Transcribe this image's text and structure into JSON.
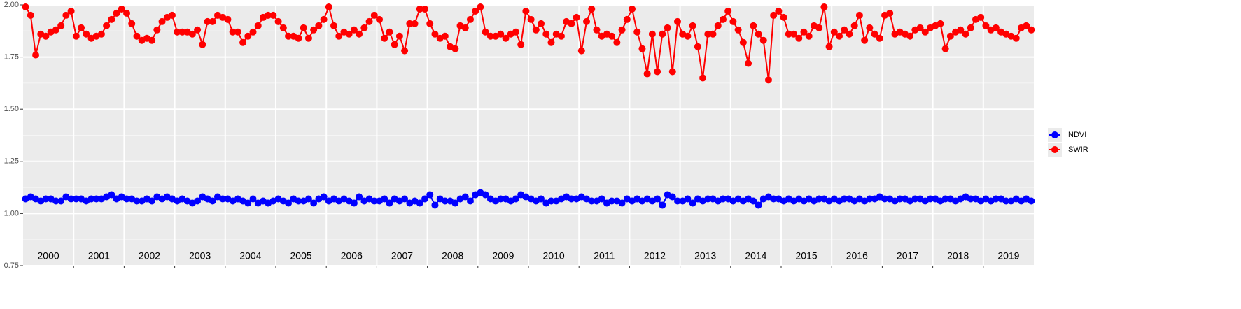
{
  "chart_data": {
    "type": "line",
    "x": [
      2000.05,
      2000.15,
      2000.25,
      2000.35,
      2000.45,
      2000.55,
      2000.65,
      2000.75,
      2000.85,
      2000.95,
      2001.05,
      2001.15,
      2001.25,
      2001.35,
      2001.45,
      2001.55,
      2001.65,
      2001.75,
      2001.85,
      2001.95,
      2002.05,
      2002.15,
      2002.25,
      2002.35,
      2002.45,
      2002.55,
      2002.65,
      2002.75,
      2002.85,
      2002.95,
      2003.05,
      2003.15,
      2003.25,
      2003.35,
      2003.45,
      2003.55,
      2003.65,
      2003.75,
      2003.85,
      2003.95,
      2004.05,
      2004.15,
      2004.25,
      2004.35,
      2004.45,
      2004.55,
      2004.65,
      2004.75,
      2004.85,
      2004.95,
      2005.05,
      2005.15,
      2005.25,
      2005.35,
      2005.45,
      2005.55,
      2005.65,
      2005.75,
      2005.85,
      2005.95,
      2006.05,
      2006.15,
      2006.25,
      2006.35,
      2006.45,
      2006.55,
      2006.65,
      2006.75,
      2006.85,
      2006.95,
      2007.05,
      2007.15,
      2007.25,
      2007.35,
      2007.45,
      2007.55,
      2007.65,
      2007.75,
      2007.85,
      2007.95,
      2008.05,
      2008.15,
      2008.25,
      2008.35,
      2008.45,
      2008.55,
      2008.65,
      2008.75,
      2008.85,
      2008.95,
      2009.05,
      2009.15,
      2009.25,
      2009.35,
      2009.45,
      2009.55,
      2009.65,
      2009.75,
      2009.85,
      2009.95,
      2010.05,
      2010.15,
      2010.25,
      2010.35,
      2010.45,
      2010.55,
      2010.65,
      2010.75,
      2010.85,
      2010.95,
      2011.05,
      2011.15,
      2011.25,
      2011.35,
      2011.45,
      2011.55,
      2011.65,
      2011.75,
      2011.85,
      2011.95,
      2012.05,
      2012.15,
      2012.25,
      2012.35,
      2012.45,
      2012.55,
      2012.65,
      2012.75,
      2012.85,
      2012.95,
      2013.05,
      2013.15,
      2013.25,
      2013.35,
      2013.45,
      2013.55,
      2013.65,
      2013.75,
      2013.85,
      2013.95,
      2014.05,
      2014.15,
      2014.25,
      2014.35,
      2014.45,
      2014.55,
      2014.65,
      2014.75,
      2014.85,
      2014.95,
      2015.05,
      2015.15,
      2015.25,
      2015.35,
      2015.45,
      2015.55,
      2015.65,
      2015.75,
      2015.85,
      2015.95,
      2016.05,
      2016.15,
      2016.25,
      2016.35,
      2016.45,
      2016.55,
      2016.65,
      2016.75,
      2016.85,
      2016.95,
      2017.05,
      2017.15,
      2017.25,
      2017.35,
      2017.45,
      2017.55,
      2017.65,
      2017.75,
      2017.85,
      2017.95,
      2018.05,
      2018.15,
      2018.25,
      2018.35,
      2018.45,
      2018.55,
      2018.65,
      2018.75,
      2018.85,
      2018.95,
      2019.05,
      2019.15,
      2019.25,
      2019.35,
      2019.45,
      2019.55,
      2019.65,
      2019.75,
      2019.85,
      2019.95
    ],
    "series": [
      {
        "name": "NDVI",
        "color": "#0000ff",
        "values": [
          1.07,
          1.08,
          1.07,
          1.06,
          1.07,
          1.07,
          1.06,
          1.06,
          1.08,
          1.07,
          1.07,
          1.07,
          1.06,
          1.07,
          1.07,
          1.07,
          1.08,
          1.09,
          1.07,
          1.08,
          1.07,
          1.07,
          1.06,
          1.06,
          1.07,
          1.06,
          1.08,
          1.07,
          1.08,
          1.07,
          1.06,
          1.07,
          1.06,
          1.05,
          1.06,
          1.08,
          1.07,
          1.06,
          1.08,
          1.07,
          1.07,
          1.06,
          1.07,
          1.06,
          1.05,
          1.07,
          1.05,
          1.06,
          1.05,
          1.06,
          1.07,
          1.06,
          1.05,
          1.07,
          1.06,
          1.06,
          1.07,
          1.05,
          1.07,
          1.08,
          1.06,
          1.07,
          1.06,
          1.07,
          1.06,
          1.05,
          1.08,
          1.06,
          1.07,
          1.06,
          1.06,
          1.07,
          1.05,
          1.07,
          1.06,
          1.07,
          1.05,
          1.06,
          1.05,
          1.07,
          1.09,
          1.04,
          1.07,
          1.06,
          1.06,
          1.05,
          1.07,
          1.08,
          1.06,
          1.09,
          1.1,
          1.09,
          1.07,
          1.06,
          1.07,
          1.07,
          1.06,
          1.07,
          1.09,
          1.08,
          1.07,
          1.06,
          1.07,
          1.05,
          1.06,
          1.06,
          1.07,
          1.08,
          1.07,
          1.07,
          1.08,
          1.07,
          1.06,
          1.06,
          1.07,
          1.05,
          1.06,
          1.06,
          1.05,
          1.07,
          1.06,
          1.07,
          1.06,
          1.07,
          1.06,
          1.07,
          1.04,
          1.09,
          1.08,
          1.06,
          1.06,
          1.07,
          1.05,
          1.07,
          1.06,
          1.07,
          1.07,
          1.06,
          1.07,
          1.07,
          1.06,
          1.07,
          1.06,
          1.07,
          1.06,
          1.04,
          1.07,
          1.08,
          1.07,
          1.07,
          1.06,
          1.07,
          1.06,
          1.07,
          1.06,
          1.07,
          1.06,
          1.07,
          1.07,
          1.06,
          1.07,
          1.06,
          1.07,
          1.07,
          1.06,
          1.07,
          1.06,
          1.07,
          1.07,
          1.08,
          1.07,
          1.07,
          1.06,
          1.07,
          1.07,
          1.06,
          1.07,
          1.07,
          1.06,
          1.07,
          1.07,
          1.06,
          1.07,
          1.07,
          1.06,
          1.07,
          1.08,
          1.07,
          1.07,
          1.06,
          1.07,
          1.06,
          1.07,
          1.07,
          1.06,
          1.06,
          1.07,
          1.06,
          1.07,
          1.06
        ]
      },
      {
        "name": "SWIR",
        "color": "#ff0000",
        "values": [
          1.99,
          1.95,
          1.76,
          1.86,
          1.85,
          1.87,
          1.88,
          1.9,
          1.95,
          1.97,
          1.85,
          1.89,
          1.86,
          1.84,
          1.85,
          1.86,
          1.9,
          1.93,
          1.96,
          1.98,
          1.96,
          1.91,
          1.85,
          1.83,
          1.84,
          1.83,
          1.88,
          1.92,
          1.94,
          1.95,
          1.87,
          1.87,
          1.87,
          1.86,
          1.88,
          1.81,
          1.92,
          1.92,
          1.95,
          1.94,
          1.93,
          1.87,
          1.87,
          1.82,
          1.85,
          1.87,
          1.9,
          1.94,
          1.95,
          1.95,
          1.92,
          1.89,
          1.85,
          1.85,
          1.84,
          1.89,
          1.84,
          1.88,
          1.9,
          1.93,
          1.99,
          1.9,
          1.85,
          1.87,
          1.86,
          1.88,
          1.86,
          1.89,
          1.92,
          1.95,
          1.93,
          1.84,
          1.87,
          1.81,
          1.85,
          1.78,
          1.91,
          1.91,
          1.98,
          1.98,
          1.91,
          1.86,
          1.84,
          1.85,
          1.8,
          1.79,
          1.9,
          1.89,
          1.93,
          1.97,
          1.99,
          1.87,
          1.85,
          1.85,
          1.86,
          1.84,
          1.86,
          1.87,
          1.81,
          1.97,
          1.93,
          1.88,
          1.91,
          1.86,
          1.82,
          1.86,
          1.85,
          1.92,
          1.91,
          1.94,
          1.78,
          1.92,
          1.98,
          1.88,
          1.85,
          1.86,
          1.85,
          1.82,
          1.88,
          1.93,
          1.98,
          1.87,
          1.79,
          1.67,
          1.86,
          1.68,
          1.86,
          1.89,
          1.68,
          1.92,
          1.86,
          1.85,
          1.9,
          1.8,
          1.65,
          1.86,
          1.86,
          1.9,
          1.93,
          1.97,
          1.92,
          1.88,
          1.82,
          1.72,
          1.9,
          1.86,
          1.83,
          1.64,
          1.95,
          1.97,
          1.94,
          1.86,
          1.86,
          1.84,
          1.87,
          1.85,
          1.9,
          1.89,
          1.99,
          1.8,
          1.87,
          1.85,
          1.88,
          1.86,
          1.9,
          1.95,
          1.83,
          1.89,
          1.86,
          1.84,
          1.95,
          1.96,
          1.86,
          1.87,
          1.86,
          1.85,
          1.88,
          1.89,
          1.87,
          1.89,
          1.9,
          1.91,
          1.79,
          1.85,
          1.87,
          1.88,
          1.86,
          1.89,
          1.93,
          1.94,
          1.9,
          1.88,
          1.89,
          1.87,
          1.86,
          1.85,
          1.84,
          1.89,
          1.9,
          1.88
        ]
      }
    ],
    "xlim": [
      2000,
      2020
    ],
    "xticks": [
      2001,
      2002,
      2003,
      2004,
      2005,
      2006,
      2007,
      2008,
      2009,
      2010,
      2011,
      2012,
      2013,
      2014,
      2015,
      2016,
      2017,
      2018,
      2019
    ],
    "year_labels": [
      {
        "value": 2000.5,
        "label": "2000"
      },
      {
        "value": 2001.5,
        "label": "2001"
      },
      {
        "value": 2002.5,
        "label": "2002"
      },
      {
        "value": 2003.5,
        "label": "2003"
      },
      {
        "value": 2004.5,
        "label": "2004"
      },
      {
        "value": 2005.5,
        "label": "2005"
      },
      {
        "value": 2006.5,
        "label": "2006"
      },
      {
        "value": 2007.5,
        "label": "2007"
      },
      {
        "value": 2008.5,
        "label": "2008"
      },
      {
        "value": 2009.5,
        "label": "2009"
      },
      {
        "value": 2010.5,
        "label": "2010"
      },
      {
        "value": 2011.5,
        "label": "2011"
      },
      {
        "value": 2012.5,
        "label": "2012"
      },
      {
        "value": 2013.5,
        "label": "2013"
      },
      {
        "value": 2014.5,
        "label": "2014"
      },
      {
        "value": 2015.5,
        "label": "2015"
      },
      {
        "value": 2016.5,
        "label": "2016"
      },
      {
        "value": 2017.5,
        "label": "2017"
      },
      {
        "value": 2018.5,
        "label": "2018"
      },
      {
        "value": 2019.5,
        "label": "2019"
      }
    ],
    "ylim": [
      0.75,
      2
    ],
    "yticks": [
      0.75,
      {
        "value": 1,
        "label": "1.00"
      },
      1.25,
      {
        "value": 1.5,
        "label": "1.50"
      },
      1.75,
      {
        "value": 2,
        "label": "2.00"
      }
    ],
    "grid": true
  }
}
